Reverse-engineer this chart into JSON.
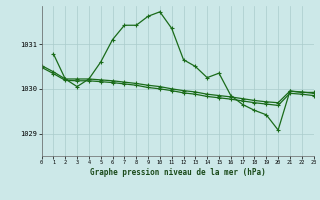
{
  "title": "Graphe pression niveau de la mer (hPa)",
  "bg_color": "#cce8e8",
  "grid_color": "#aacccc",
  "line_color": "#1a6b1a",
  "xlim": [
    0,
    23
  ],
  "ylim": [
    1028.5,
    1031.85
  ],
  "yticks": [
    1029,
    1030,
    1031
  ],
  "xticks": [
    0,
    1,
    2,
    3,
    4,
    5,
    6,
    7,
    8,
    9,
    10,
    11,
    12,
    13,
    14,
    15,
    16,
    17,
    18,
    19,
    20,
    21,
    22,
    23
  ],
  "main_x": [
    1,
    2,
    3,
    4,
    5,
    6,
    7,
    8,
    9,
    10,
    11,
    12,
    13,
    14,
    15,
    16,
    17,
    18,
    19,
    20,
    21,
    22,
    23
  ],
  "main_y": [
    1030.78,
    1030.22,
    1030.05,
    1030.22,
    1030.6,
    1031.1,
    1031.42,
    1031.42,
    1031.62,
    1031.72,
    1031.35,
    1030.65,
    1030.5,
    1030.25,
    1030.35,
    1029.85,
    1029.65,
    1029.52,
    1029.42,
    1029.08,
    1029.95,
    1029.92,
    1029.92
  ],
  "decline1_x": [
    0,
    1,
    2,
    3,
    4,
    5,
    6,
    7,
    8,
    9,
    10,
    11,
    12,
    13,
    14,
    15,
    16,
    17,
    18,
    19,
    20,
    21,
    22,
    23
  ],
  "decline1_y": [
    1030.52,
    1030.38,
    1030.22,
    1030.22,
    1030.22,
    1030.2,
    1030.18,
    1030.15,
    1030.12,
    1030.08,
    1030.05,
    1030.0,
    1029.96,
    1029.93,
    1029.88,
    1029.85,
    1029.82,
    1029.78,
    1029.74,
    1029.71,
    1029.69,
    1029.95,
    1029.93,
    1029.9
  ],
  "decline2_x": [
    0,
    1,
    2,
    3,
    4,
    5,
    6,
    7,
    8,
    9,
    10,
    11,
    12,
    13,
    14,
    15,
    16,
    17,
    18,
    19,
    20,
    21,
    22,
    23
  ],
  "decline2_y": [
    1030.48,
    1030.34,
    1030.19,
    1030.18,
    1030.18,
    1030.16,
    1030.14,
    1030.11,
    1030.08,
    1030.03,
    1030.0,
    1029.96,
    1029.91,
    1029.88,
    1029.83,
    1029.8,
    1029.77,
    1029.73,
    1029.69,
    1029.66,
    1029.63,
    1029.9,
    1029.88,
    1029.85
  ]
}
